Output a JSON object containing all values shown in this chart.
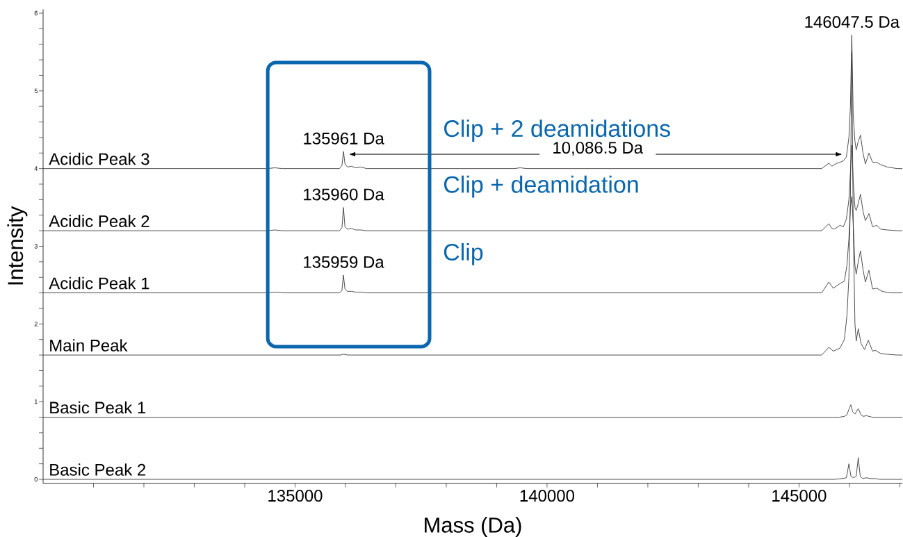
{
  "chart_data": {
    "type": "line",
    "xlabel": "Mass (Da)",
    "ylabel": "Intensity",
    "xlim": [
      130000,
      147050
    ],
    "ylim": [
      -0.05,
      6.05
    ],
    "xticks": [
      {
        "value": 131000,
        "label": null
      },
      {
        "value": 132000,
        "label": null
      },
      {
        "value": 133000,
        "label": null
      },
      {
        "value": 134000,
        "label": null
      },
      135000,
      {
        "value": 136000,
        "label": null
      },
      {
        "value": 137000,
        "label": null
      },
      {
        "value": 138000,
        "label": null
      },
      {
        "value": 139000,
        "label": null
      },
      140000,
      {
        "value": 141000,
        "label": null
      },
      {
        "value": 142000,
        "label": null
      },
      {
        "value": 143000,
        "label": null
      },
      {
        "value": 144000,
        "label": null
      },
      145000,
      {
        "value": 146000,
        "label": null
      },
      {
        "value": 147000,
        "label": null
      }
    ],
    "yticks": [
      0,
      {
        "value": 0.2,
        "label": null
      },
      {
        "value": 0.4,
        "label": null
      },
      {
        "value": 0.6,
        "label": null
      },
      {
        "value": 0.8,
        "label": null
      },
      1,
      {
        "value": 1.2,
        "label": null
      },
      {
        "value": 1.4,
        "label": null
      },
      {
        "value": 1.6,
        "label": null
      },
      {
        "value": 1.8,
        "label": null
      },
      2,
      {
        "value": 2.2,
        "label": null
      },
      {
        "value": 2.4,
        "label": null
      },
      {
        "value": 2.6,
        "label": null
      },
      {
        "value": 2.8,
        "label": null
      },
      3,
      {
        "value": 3.2,
        "label": null
      },
      {
        "value": 3.4,
        "label": null
      },
      {
        "value": 3.6,
        "label": null
      },
      {
        "value": 3.8,
        "label": null
      },
      4,
      {
        "value": 4.2,
        "label": null
      },
      {
        "value": 4.4,
        "label": null
      },
      {
        "value": 4.6,
        "label": null
      },
      {
        "value": 4.8,
        "label": null
      },
      5,
      {
        "value": 5.2,
        "label": null
      },
      {
        "value": 5.4,
        "label": null
      },
      {
        "value": 5.6,
        "label": null
      },
      {
        "value": 5.8,
        "label": null
      },
      6
    ],
    "series": [
      {
        "name": "Acidic Peak 3",
        "color": "#3a3a3a",
        "x": [
          130000,
          134450,
          134596,
          134750,
          135880,
          135930,
          135961,
          135990,
          136040,
          136119,
          136200,
          136306,
          136420,
          139350,
          139467,
          139600,
          145450,
          145592,
          145650,
          145700,
          145760,
          145813,
          145880,
          145940,
          145990,
          146020,
          146047.5,
          146075,
          146110,
          146135,
          146175,
          146220,
          146270,
          146317,
          146388,
          146460,
          146543,
          146620,
          146750,
          146950,
          147050
        ],
        "values": [
          4.0,
          4.0,
          4.01,
          4.0,
          4.0,
          4.04,
          4.22,
          4.06,
          4.02,
          4.03,
          4.01,
          4.02,
          4.0,
          4.0,
          4.01,
          4.0,
          4.0,
          4.07,
          4.03,
          4.05,
          4.07,
          4.08,
          4.1,
          4.15,
          4.4,
          4.8,
          5.72,
          4.7,
          4.35,
          4.24,
          4.35,
          4.43,
          4.2,
          4.06,
          4.2,
          4.08,
          4.08,
          4.05,
          4.02,
          4.0,
          4.0
        ]
      },
      {
        "name": "Acidic Peak 2",
        "color": "#3a3a3a",
        "x": [
          130000,
          134450,
          134596,
          134750,
          135880,
          135930,
          135960,
          135990,
          136040,
          136119,
          136200,
          136306,
          136420,
          145450,
          145592,
          145650,
          145700,
          145813,
          145880,
          145940,
          145990,
          146020,
          146047.5,
          146075,
          146110,
          146135,
          146175,
          146220,
          146270,
          146317,
          146388,
          146460,
          146543,
          146620,
          146750,
          146950,
          147050
        ],
        "values": [
          3.2,
          3.2,
          3.21,
          3.2,
          3.2,
          3.24,
          3.5,
          3.25,
          3.22,
          3.23,
          3.21,
          3.21,
          3.2,
          3.2,
          3.29,
          3.23,
          3.22,
          3.27,
          3.25,
          3.35,
          3.6,
          3.95,
          4.3,
          3.85,
          3.5,
          3.46,
          3.55,
          3.67,
          3.45,
          3.33,
          3.42,
          3.25,
          3.27,
          3.22,
          3.21,
          3.2,
          3.2
        ]
      },
      {
        "name": "Acidic Peak 1",
        "color": "#3a3a3a",
        "x": [
          130000,
          134450,
          134596,
          134750,
          135880,
          135930,
          135959,
          135990,
          136040,
          136119,
          136200,
          136306,
          136420,
          145450,
          145592,
          145680,
          145813,
          145900,
          145950,
          145990,
          146020,
          146047.5,
          146075,
          146110,
          146135,
          146175,
          146220,
          146270,
          146317,
          146388,
          146460,
          146543,
          146650,
          146800,
          147050
        ],
        "values": [
          2.4,
          2.4,
          2.41,
          2.4,
          2.4,
          2.43,
          2.63,
          2.45,
          2.42,
          2.42,
          2.41,
          2.41,
          2.4,
          2.4,
          2.54,
          2.46,
          2.52,
          2.55,
          2.75,
          3.1,
          3.5,
          3.64,
          3.3,
          2.75,
          2.64,
          2.8,
          2.94,
          2.7,
          2.54,
          2.69,
          2.45,
          2.46,
          2.42,
          2.4,
          2.4
        ]
      },
      {
        "name": "Main Peak",
        "color": "#3a3a3a",
        "x": [
          130000,
          135900,
          135961,
          136050,
          145450,
          145592,
          145680,
          145813,
          145900,
          145950,
          145990,
          146020,
          146047.5,
          146075,
          146110,
          146135,
          146176,
          146230,
          146300,
          146375,
          146460,
          146515,
          146620,
          146750,
          146950,
          147050
        ],
        "values": [
          1.6,
          1.6,
          1.61,
          1.6,
          1.6,
          1.7,
          1.65,
          1.69,
          1.8,
          2.1,
          2.6,
          3.6,
          5.5,
          3.3,
          2.0,
          1.78,
          1.94,
          1.75,
          1.67,
          1.79,
          1.65,
          1.66,
          1.62,
          1.61,
          1.6,
          1.6
        ]
      },
      {
        "name": "Basic Peak 1",
        "color": "#3a3a3a",
        "x": [
          130000,
          145800,
          145900,
          145950,
          145990,
          146028,
          146065,
          146110,
          146176,
          146230,
          146280,
          146334,
          146450,
          147050
        ],
        "values": [
          0.8,
          0.8,
          0.81,
          0.83,
          0.9,
          0.96,
          0.87,
          0.84,
          0.91,
          0.83,
          0.81,
          0.82,
          0.8,
          0.8
        ]
      },
      {
        "name": "Basic Peak 2",
        "color": "#3a3a3a",
        "x": [
          130000,
          145700,
          145850,
          145940,
          145990,
          146030,
          146080,
          146135,
          146176,
          146215,
          146260,
          146334,
          146430,
          146515,
          146600,
          147050
        ],
        "values": [
          0,
          0,
          0.01,
          0.02,
          0.2,
          0.04,
          0.02,
          0.04,
          0.28,
          0.04,
          0.01,
          0.02,
          0.01,
          0.01,
          0,
          0
        ]
      }
    ],
    "annotations": [
      {
        "text": "146047.5 Da",
        "x": 146047.5,
        "y": 5.72
      },
      {
        "text": "135961 Da",
        "x": 135961,
        "y": 4.22
      },
      {
        "text": "135960 Da",
        "x": 135960,
        "y": 3.5
      },
      {
        "text": "135959 Da",
        "x": 135959,
        "y": 2.63
      },
      "10,086.5 Da",
      "Clip + 2 deamidations",
      "Clip + deamidation",
      "Clip"
    ]
  }
}
